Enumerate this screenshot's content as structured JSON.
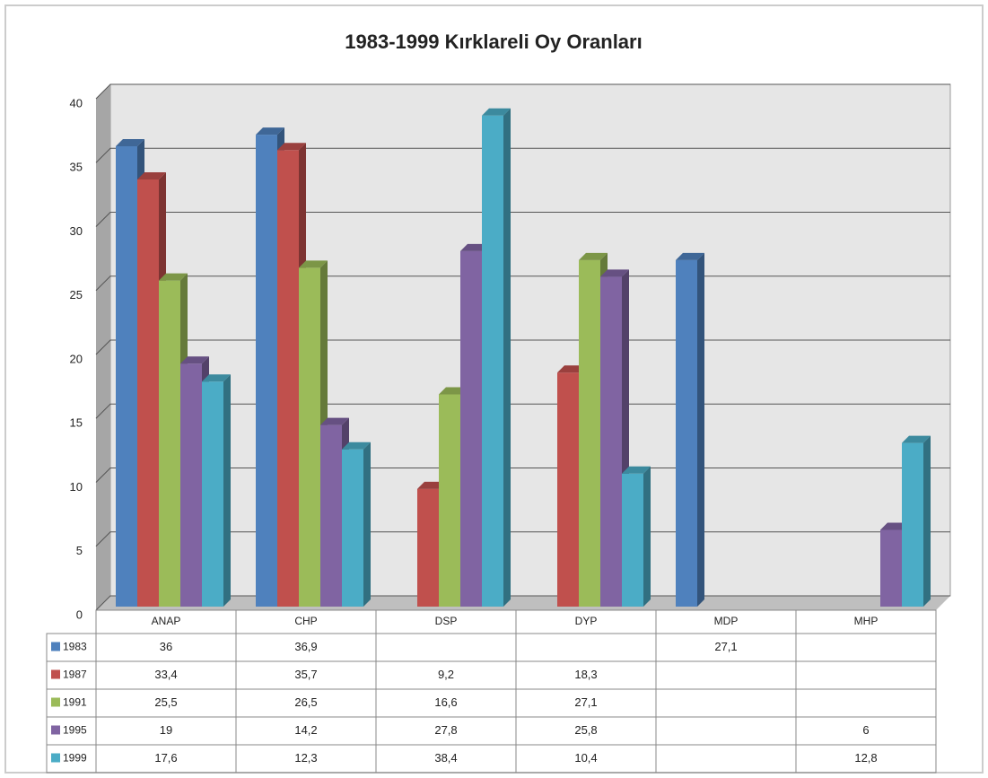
{
  "chart_data": {
    "type": "bar3d",
    "title": "1983-1999 Kırklareli Oy Oranları",
    "categories": [
      "ANAP",
      "CHP",
      "DSP",
      "DYP",
      "MDP",
      "MHP"
    ],
    "series": [
      {
        "name": "1983",
        "color": "#4f81bd",
        "values": [
          36,
          36.9,
          null,
          null,
          27.1,
          null
        ],
        "value_labels": [
          "36",
          "36,9",
          null,
          null,
          "27,1",
          null
        ]
      },
      {
        "name": "1987",
        "color": "#c0504d",
        "values": [
          33.4,
          35.7,
          9.2,
          18.3,
          null,
          null
        ],
        "value_labels": [
          "33,4",
          "35,7",
          "9,2",
          "18,3",
          null,
          null
        ]
      },
      {
        "name": "1991",
        "color": "#9bbb59",
        "values": [
          25.5,
          26.5,
          16.6,
          27.1,
          null,
          null
        ],
        "value_labels": [
          "25,5",
          "26,5",
          "16,6",
          "27,1",
          null,
          null
        ]
      },
      {
        "name": "1995",
        "color": "#8064a2",
        "values": [
          19,
          14.2,
          27.8,
          25.8,
          null,
          6
        ],
        "value_labels": [
          "19",
          "14,2",
          "27,8",
          "25,8",
          null,
          "6"
        ]
      },
      {
        "name": "1999",
        "color": "#4bacc6",
        "values": [
          17.6,
          12.3,
          38.4,
          10.4,
          null,
          12.8
        ],
        "value_labels": [
          "17,6",
          "12,3",
          "38,4",
          "10,4",
          null,
          "12,8"
        ]
      }
    ],
    "ylim": [
      0,
      40
    ],
    "yticks": [
      0,
      5,
      10,
      15,
      20,
      25,
      30,
      35,
      40
    ],
    "grid": true
  }
}
